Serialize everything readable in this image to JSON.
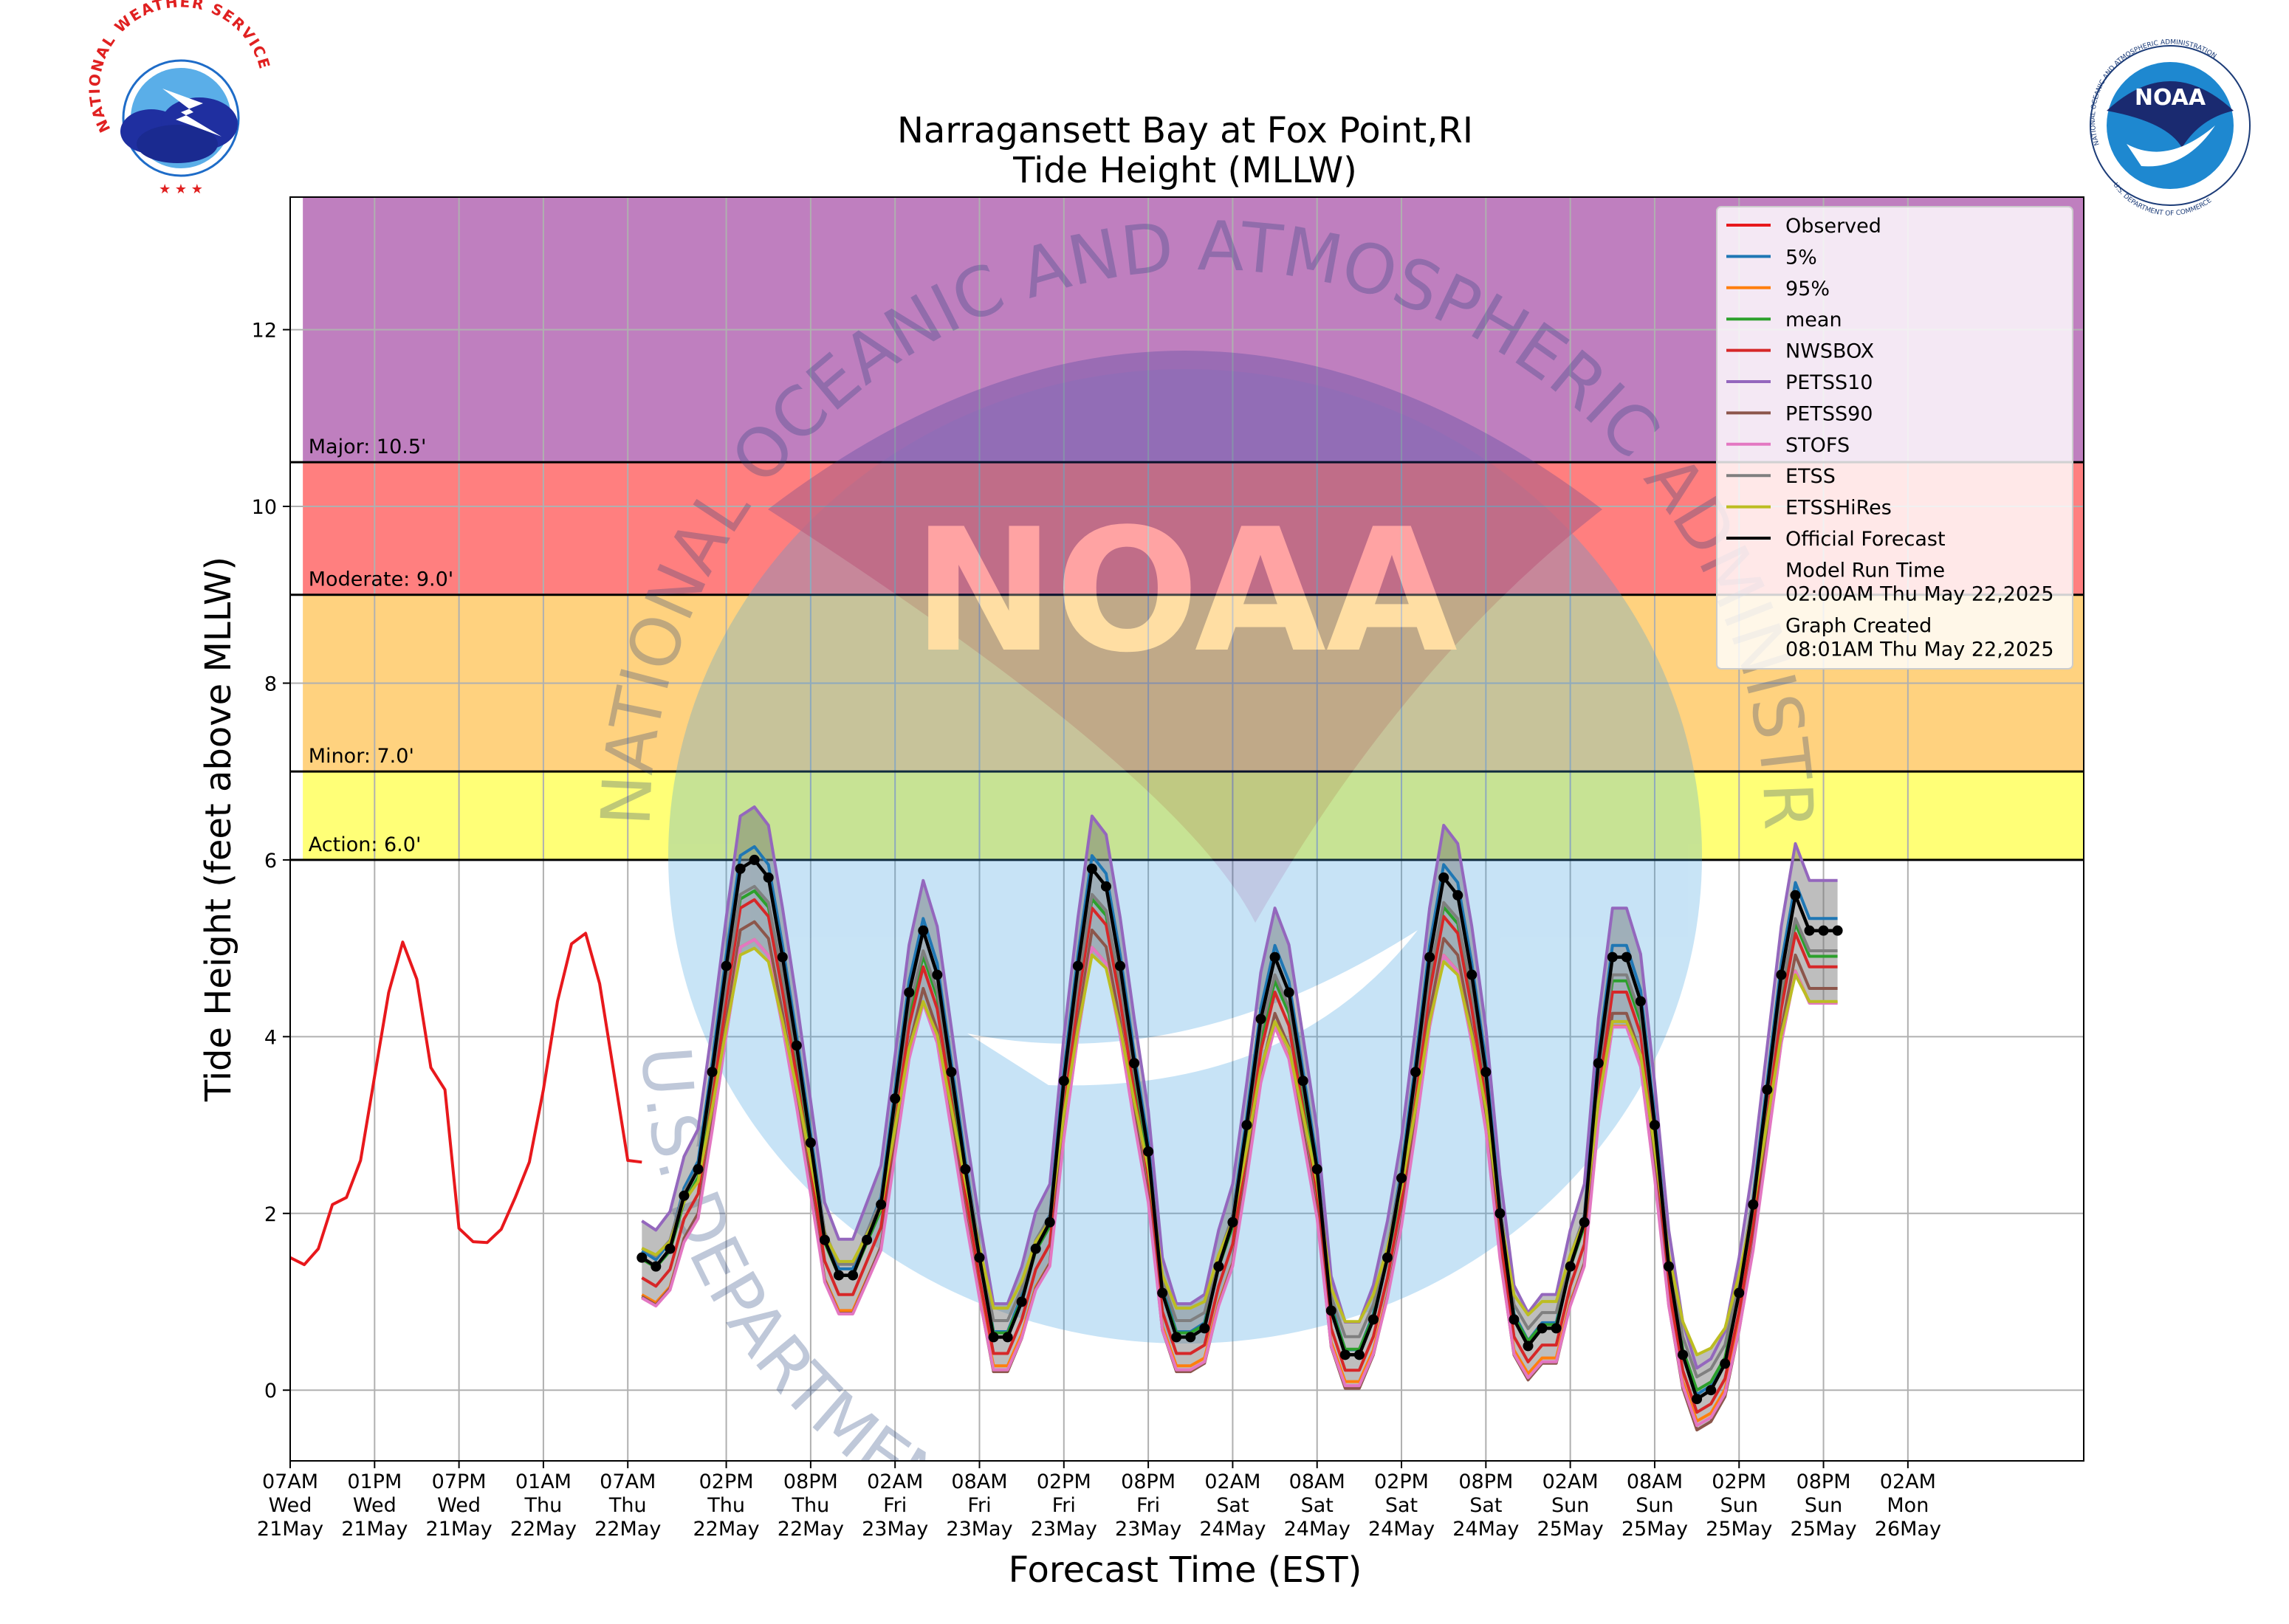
{
  "logos": {
    "nws_text": "NATIONAL WEATHER SERVICE",
    "noaa_badge": "NOAA",
    "noaa_ring_top": "NATIONAL OCEANIC AND ATMOSPHERIC ADMINISTRATION",
    "noaa_ring_bottom": "U.S. DEPARTMENT OF COMMERCE"
  },
  "watermark": {
    "arc_top": "NATIONAL OCEANIC AND ATMOSPHERIC ADMINISTRATION",
    "arc_bottom": "U.S. DEPARTMENT OF COMMERCE",
    "center": "NOAA"
  },
  "chart_data": {
    "type": "line",
    "title": "Narragansett Bay at Fox Point,RI",
    "subtitle": "Tide Height (MLLW)",
    "xlabel": "Forecast Time (EST)",
    "ylabel": "Tide Height (feet above MLLW)",
    "x_unit": "hours after 07AM Wed 21May",
    "xlim": [
      0,
      127.5
    ],
    "ylim": [
      -0.8,
      13.5
    ],
    "yticks": [
      0,
      2,
      4,
      6,
      8,
      10,
      12
    ],
    "xticks": [
      {
        "x": 0,
        "label": [
          "07AM",
          "Wed",
          "21May"
        ]
      },
      {
        "x": 6,
        "label": [
          "01PM",
          "Wed",
          "21May"
        ]
      },
      {
        "x": 12,
        "label": [
          "07PM",
          "Wed",
          "21May"
        ]
      },
      {
        "x": 18,
        "label": [
          "01AM",
          "Thu",
          "22May"
        ]
      },
      {
        "x": 24,
        "label": [
          "07AM",
          "Thu",
          "22May"
        ]
      },
      {
        "x": 31,
        "label": [
          "02PM",
          "Thu",
          "22May"
        ]
      },
      {
        "x": 37,
        "label": [
          "08PM",
          "Thu",
          "22May"
        ]
      },
      {
        "x": 43,
        "label": [
          "02AM",
          "Fri",
          "23May"
        ]
      },
      {
        "x": 49,
        "label": [
          "08AM",
          "Fri",
          "23May"
        ]
      },
      {
        "x": 55,
        "label": [
          "02PM",
          "Fri",
          "23May"
        ]
      },
      {
        "x": 61,
        "label": [
          "08PM",
          "Fri",
          "23May"
        ]
      },
      {
        "x": 67,
        "label": [
          "02AM",
          "Sat",
          "24May"
        ]
      },
      {
        "x": 73,
        "label": [
          "08AM",
          "Sat",
          "24May"
        ]
      },
      {
        "x": 79,
        "label": [
          "02PM",
          "Sat",
          "24May"
        ]
      },
      {
        "x": 85,
        "label": [
          "08PM",
          "Sat",
          "24May"
        ]
      },
      {
        "x": 91,
        "label": [
          "02AM",
          "Sun",
          "25May"
        ]
      },
      {
        "x": 97,
        "label": [
          "08AM",
          "Sun",
          "25May"
        ]
      },
      {
        "x": 103,
        "label": [
          "02PM",
          "Sun",
          "25May"
        ]
      },
      {
        "x": 109,
        "label": [
          "08PM",
          "Sun",
          "25May"
        ]
      },
      {
        "x": 115,
        "label": [
          "02AM",
          "Mon",
          "26May"
        ]
      }
    ],
    "thresholds": [
      {
        "name": "Action",
        "label": "Action: 6.0'",
        "from": 6.0,
        "to": 7.0,
        "color": "#ffff77"
      },
      {
        "name": "Minor",
        "label": "Minor: 7.0'",
        "from": 7.0,
        "to": 9.0,
        "color": "#ffd27f"
      },
      {
        "name": "Moderate",
        "label": "Moderate: 9.0'",
        "from": 9.0,
        "to": 10.5,
        "color": "#ff7f7f"
      },
      {
        "name": "Major",
        "label": "Major: 10.5'",
        "from": 10.5,
        "to": 13.5,
        "color": "#bf7fbf"
      }
    ],
    "grid": true,
    "legend_position": "top-right",
    "series": [
      {
        "name": "Observed",
        "color": "#e8181c",
        "x": [
          0,
          1,
          2,
          3,
          4,
          5,
          6,
          7,
          8,
          9,
          10,
          11,
          12,
          13,
          14,
          15,
          16,
          17,
          18,
          19,
          20,
          21,
          22,
          23,
          24,
          25
        ],
        "y": [
          1.5,
          1.42,
          1.6,
          2.1,
          2.18,
          2.6,
          3.55,
          4.5,
          5.07,
          4.65,
          3.65,
          3.4,
          1.83,
          1.68,
          1.67,
          1.82,
          2.18,
          2.58,
          3.4,
          4.4,
          5.05,
          5.17,
          4.6,
          3.6,
          2.6,
          2.58
        ]
      },
      {
        "name": "5%",
        "color": "#1f77b4",
        "cycle_low_offset": 0.05,
        "cycle_high_offset": 0.15
      },
      {
        "name": "95%",
        "color": "#ff7f0e",
        "cycle_low_offset": -0.25,
        "cycle_high_offset": -0.9
      },
      {
        "name": "mean",
        "color": "#2ca02c",
        "cycle_low_offset": 0.1,
        "cycle_high_offset": -0.35
      },
      {
        "name": "NWSBOX",
        "color": "#d62728",
        "cycle_low_offset": -0.15,
        "cycle_high_offset": -0.45
      },
      {
        "name": "PETSS10",
        "color": "#9467bd",
        "cycle_low_offset": 0.35,
        "cycle_high_offset": 0.6
      },
      {
        "name": "PETSS90",
        "color": "#8c564b",
        "cycle_low_offset": -0.35,
        "cycle_high_offset": -0.7
      },
      {
        "name": "STOFS",
        "color": "#e377c2",
        "cycle_low_offset": -0.3,
        "cycle_high_offset": -0.9
      },
      {
        "name": "ETSS",
        "color": "#7f7f7f",
        "cycle_low_offset": 0.25,
        "cycle_high_offset": -0.3
      },
      {
        "name": "ETSSHiRes",
        "color": "#bcbd22",
        "cycle_low_offset": 0.5,
        "cycle_high_offset": -1.0
      },
      {
        "name": "Official Forecast",
        "color": "#000000",
        "marker": "circle",
        "x": [
          25,
          26,
          27,
          28,
          29,
          30,
          31,
          32,
          33,
          34,
          35,
          36,
          37,
          38,
          39,
          40,
          41,
          42,
          43,
          44,
          45,
          46,
          47,
          48,
          49,
          50,
          51,
          52,
          53,
          54,
          55,
          56,
          57,
          58,
          59,
          60,
          61,
          62,
          63,
          64,
          65,
          66,
          67,
          68,
          69,
          70,
          71,
          72,
          73,
          74,
          75,
          76,
          77,
          78,
          79,
          80,
          81,
          82,
          83,
          84,
          85,
          86,
          87,
          88,
          89,
          90,
          91,
          92,
          93,
          94,
          95,
          96,
          97,
          98,
          99,
          100,
          101,
          102,
          103,
          104,
          105,
          106,
          107,
          108,
          109,
          110
        ],
        "y": [
          1.5,
          1.4,
          1.6,
          2.2,
          2.5,
          3.6,
          4.8,
          5.9,
          6.0,
          5.8,
          4.9,
          3.9,
          2.8,
          1.7,
          1.3,
          1.3,
          1.7,
          2.1,
          3.3,
          4.5,
          5.2,
          4.7,
          3.6,
          2.5,
          1.5,
          0.6,
          0.6,
          1.0,
          1.6,
          1.9,
          3.5,
          4.8,
          5.9,
          5.7,
          4.8,
          3.7,
          2.7,
          1.1,
          0.6,
          0.6,
          0.7,
          1.4,
          1.9,
          3.0,
          4.2,
          4.9,
          4.5,
          3.5,
          2.5,
          0.9,
          0.4,
          0.4,
          0.8,
          1.5,
          2.4,
          3.6,
          4.9,
          5.8,
          5.6,
          4.7,
          3.6,
          2.0,
          0.8,
          0.5,
          0.7,
          0.7,
          1.4,
          1.9,
          3.7,
          4.9,
          4.9,
          4.4,
          3.0,
          1.4,
          0.4,
          -0.1,
          0.0,
          0.3,
          1.1,
          2.1,
          3.4,
          4.7,
          5.6,
          5.2,
          5.2,
          5.2
        ]
      },
      {
        "name": "Model Run Time",
        "label_line2": "02:00AM Thu May 22,2025"
      },
      {
        "name": "Graph Created",
        "label_line2": "08:01AM Thu May 22,2025"
      }
    ]
  }
}
